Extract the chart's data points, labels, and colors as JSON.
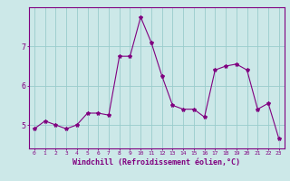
{
  "x": [
    0,
    1,
    2,
    3,
    4,
    5,
    6,
    7,
    8,
    9,
    10,
    11,
    12,
    13,
    14,
    15,
    16,
    17,
    18,
    19,
    20,
    21,
    22,
    23
  ],
  "y": [
    4.9,
    5.1,
    5.0,
    4.9,
    5.0,
    5.3,
    5.3,
    5.25,
    6.75,
    6.75,
    7.75,
    7.1,
    6.25,
    5.5,
    5.4,
    5.4,
    5.2,
    6.4,
    6.5,
    6.55,
    6.4,
    5.4,
    5.55,
    4.65
  ],
  "line_color": "#800080",
  "marker": "*",
  "markersize": 3,
  "linewidth": 0.8,
  "bg_color": "#cce8e8",
  "grid_color": "#99cccc",
  "axis_color": "#800080",
  "tick_label_color": "#800080",
  "xlabel": "Windchill (Refroidissement éolien,°C)",
  "xlabel_fontsize": 6,
  "yticks": [
    5,
    6,
    7
  ],
  "ytick_labels": [
    "5",
    "6",
    "7"
  ],
  "ylim": [
    4.4,
    8.0
  ],
  "xlim": [
    -0.5,
    23.5
  ]
}
